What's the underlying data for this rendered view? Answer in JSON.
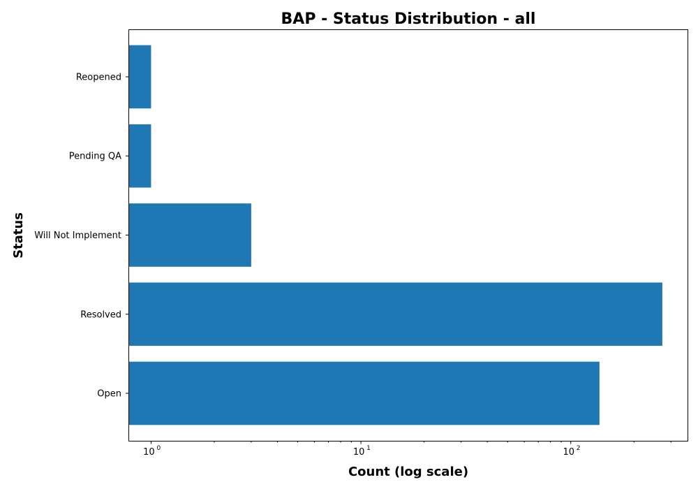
{
  "chart_data": {
    "type": "bar",
    "orientation": "horizontal",
    "title": "BAP - Status Distribution - all",
    "xlabel": "Count (log scale)",
    "ylabel": "Status",
    "xscale": "log",
    "xlim": [
      0.78,
      360
    ],
    "categories": [
      "Open",
      "Resolved",
      "Will Not Implement",
      "Pending QA",
      "Reopened"
    ],
    "values": [
      137,
      273,
      3,
      1,
      1
    ],
    "x_major_ticks": [
      {
        "base": "10",
        "exp": "0",
        "value": 1
      },
      {
        "base": "10",
        "exp": "1",
        "value": 10
      },
      {
        "base": "10",
        "exp": "2",
        "value": 100
      }
    ],
    "bar_color": "#1f77b4",
    "grid": false,
    "legend": "none"
  }
}
